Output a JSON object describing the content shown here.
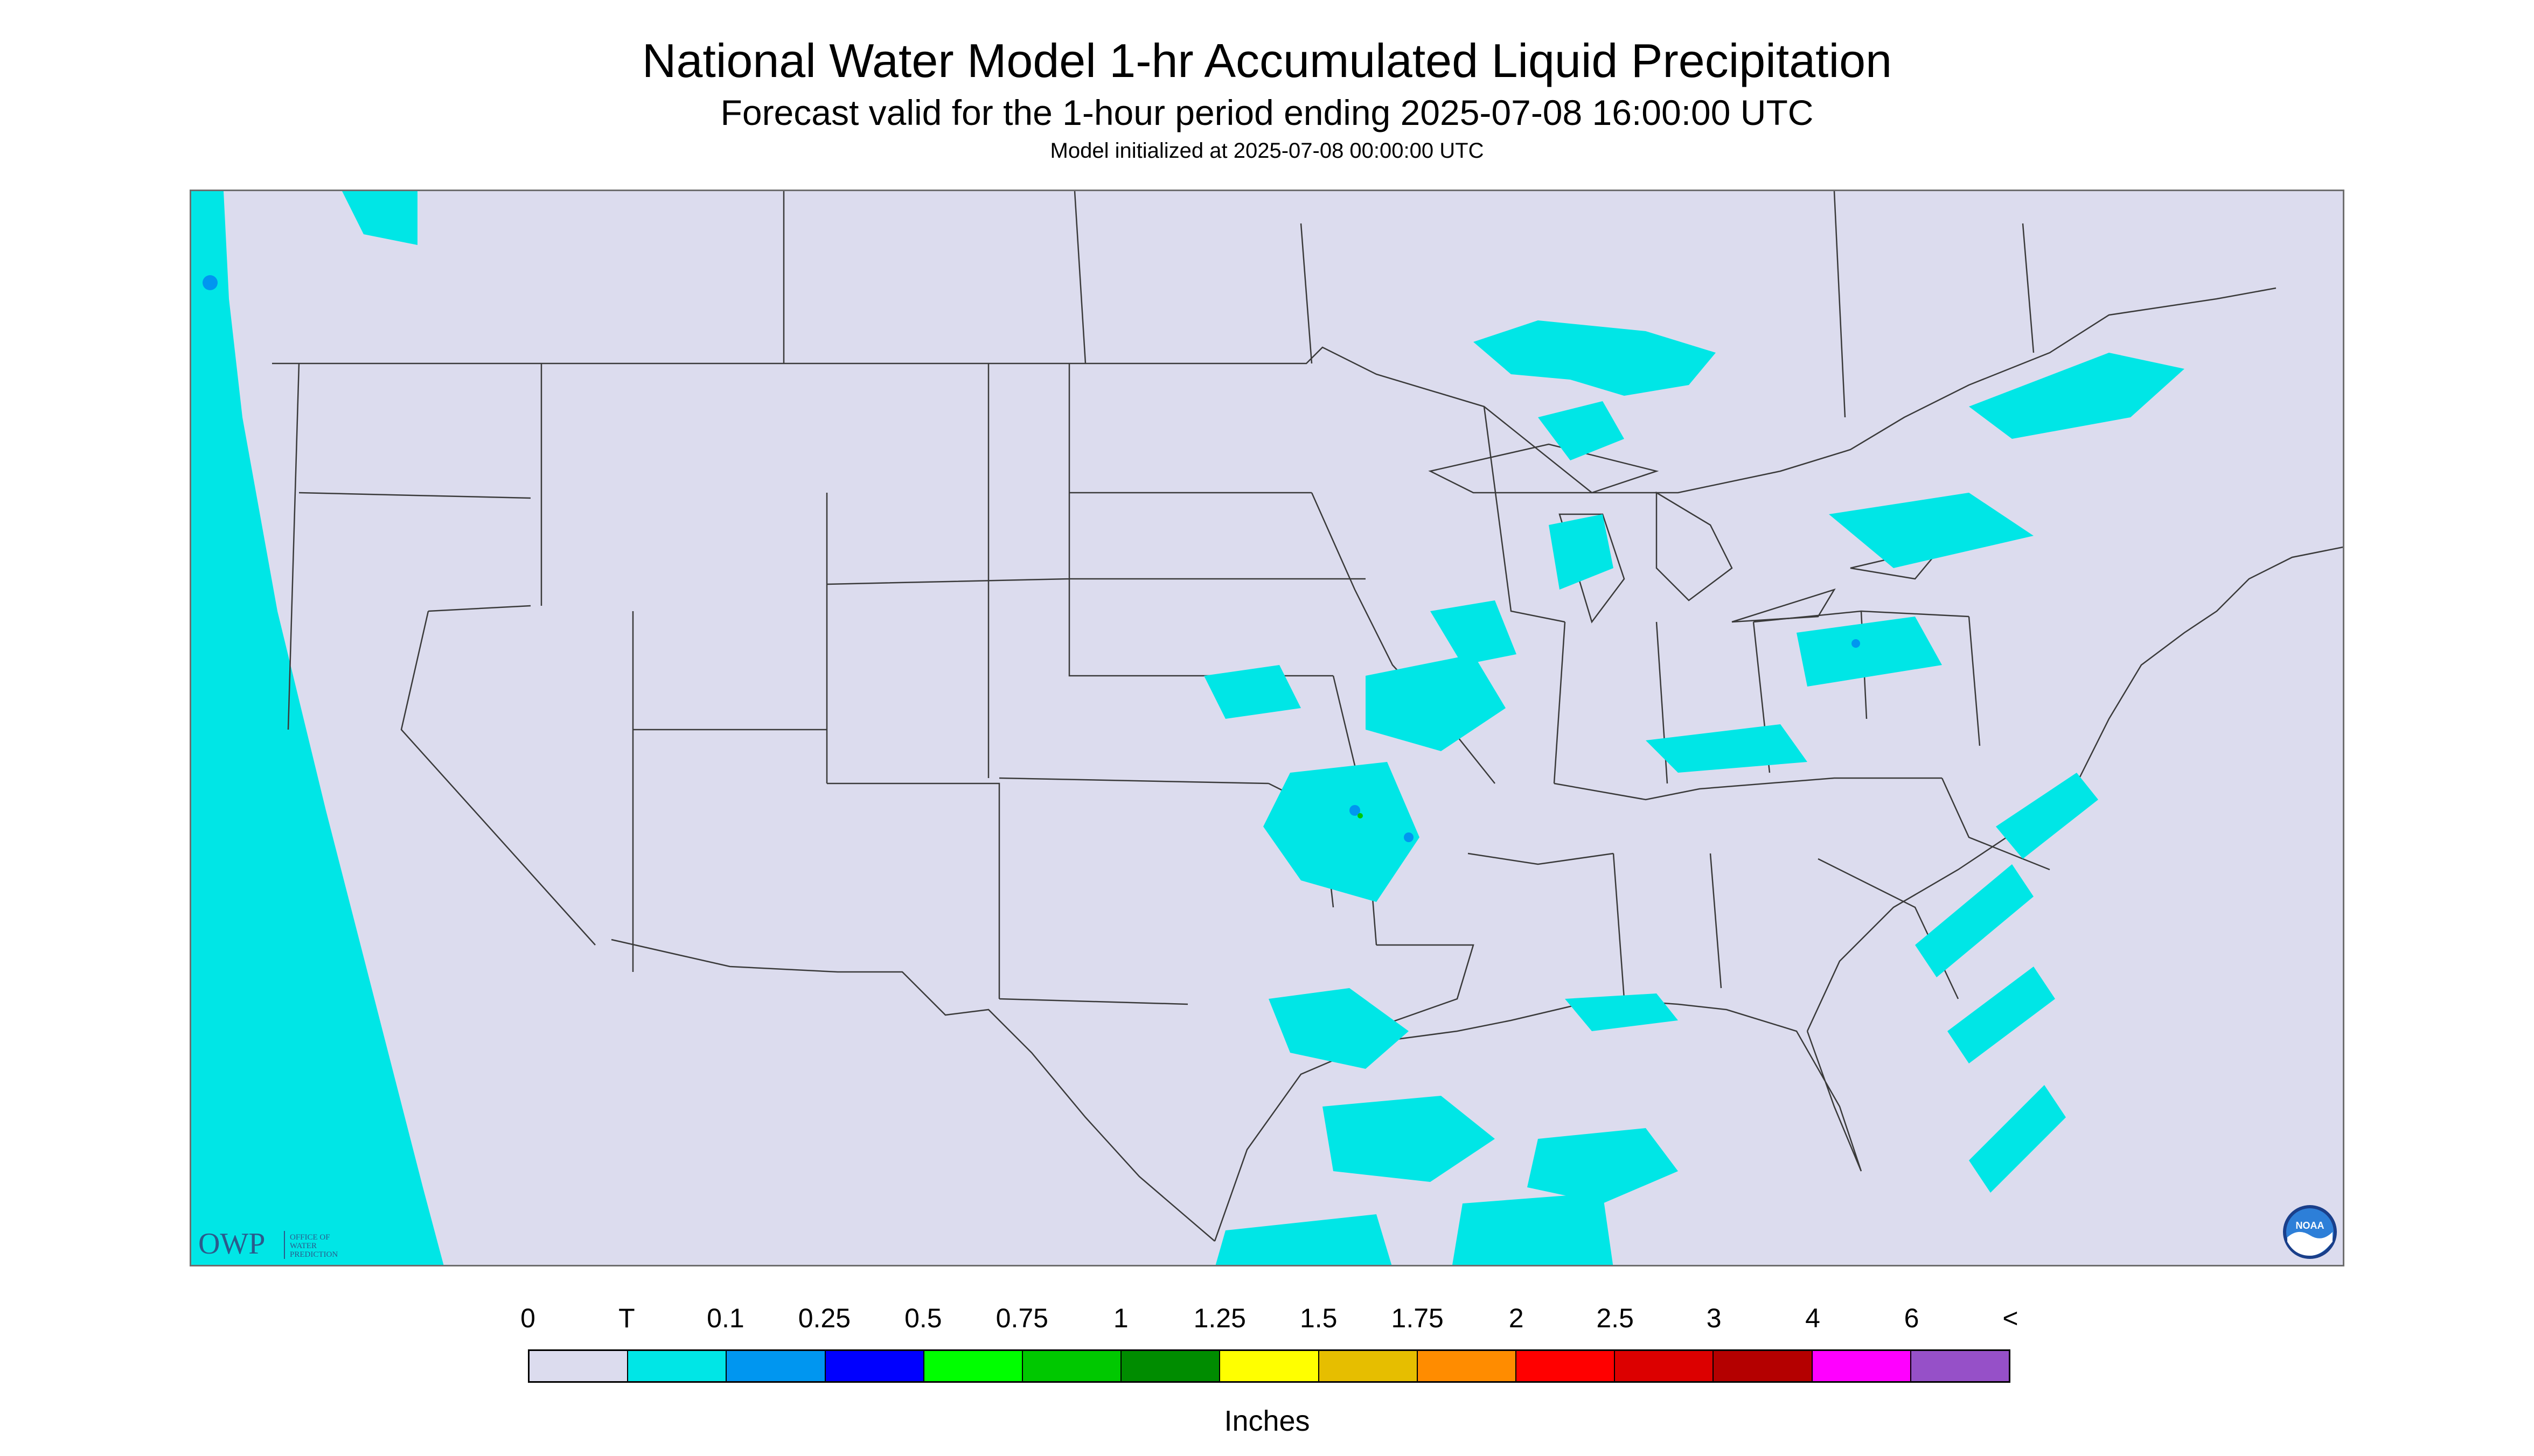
{
  "header": {
    "title": "National Water Model 1-hr Accumulated Liquid Precipitation",
    "subtitle": "Forecast valid for the 1-hour period ending 2025-07-08 16:00:00 UTC",
    "init_text": "Model initialized at 2025-07-08 00:00:00 UTC"
  },
  "logos": {
    "owp_mark": "OWP",
    "owp_name_lines": [
      "OFFICE OF",
      "WATER",
      "PREDICTION"
    ],
    "noaa_mark": "NOAA"
  },
  "colors": {
    "map_background": "#dcdcee",
    "trace": "#00e6e6",
    "light_blue": "#0096f0",
    "blue": "#0000ff",
    "green": "#00ff00"
  },
  "legend": {
    "labels": [
      "0",
      "T",
      "0.1",
      "0.25",
      "0.5",
      "0.75",
      "1",
      "1.25",
      "1.5",
      "1.75",
      "2",
      "2.5",
      "3",
      "4",
      "6",
      "<"
    ],
    "swatches": [
      "#dcdcee",
      "#00e6e6",
      "#0096f0",
      "#0000ff",
      "#00ff00",
      "#00c800",
      "#008c00",
      "#ffff00",
      "#e6be00",
      "#ff8c00",
      "#ff0000",
      "#dc0000",
      "#b40000",
      "#ff00ff",
      "#9650c8"
    ],
    "units": "Inches"
  }
}
